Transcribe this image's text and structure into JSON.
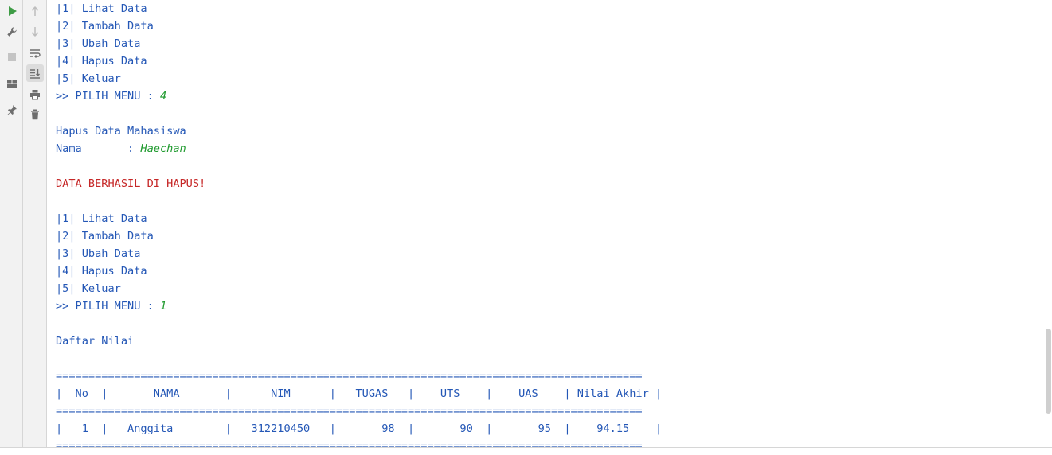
{
  "toolbar_left": [
    {
      "name": "run-icon"
    },
    {
      "name": "wrench-icon"
    },
    {
      "name": "stop-icon"
    },
    {
      "name": "layout-icon"
    },
    {
      "name": "pin-icon"
    }
  ],
  "toolbar_right": [
    {
      "name": "arrow-up-icon"
    },
    {
      "name": "arrow-down-icon"
    },
    {
      "name": "soft-wrap-icon"
    },
    {
      "name": "scroll-to-end-icon"
    },
    {
      "name": "print-icon"
    },
    {
      "name": "trash-icon"
    }
  ],
  "console": {
    "menu1": {
      "items": [
        "|1| Lihat Data",
        "|2| Tambah Data",
        "|3| Ubah Data",
        "|4| Hapus Data",
        "|5| Keluar"
      ],
      "prompt": ">> PILIH MENU : ",
      "input": "4"
    },
    "hapus": {
      "heading": "Hapus Data Mahasiswa",
      "nama_label": "Nama       : ",
      "nama_value": "Haechan",
      "message": "DATA BERHASIL DI HAPUS!"
    },
    "menu2": {
      "items": [
        "|1| Lihat Data",
        "|2| Tambah Data",
        "|3| Ubah Data",
        "|4| Hapus Data",
        "|5| Keluar"
      ],
      "prompt": ">> PILIH MENU : ",
      "input": "1"
    },
    "daftar": {
      "heading": "Daftar Nilai",
      "separator": "==========================================================================================",
      "header": "|  No  |       NAMA       |      NIM      |   TUGAS   |    UTS    |    UAS    | Nilai Akhir |",
      "rows": [
        "|   1  |   Anggita        |   312210450   |       98  |       90  |       95  |    94.15    |"
      ]
    }
  },
  "colors": {
    "output_text": "#2457b6",
    "user_input": "#1f9a2e",
    "error_text": "#c62828",
    "gutter_bg": "#f2f2f2"
  }
}
